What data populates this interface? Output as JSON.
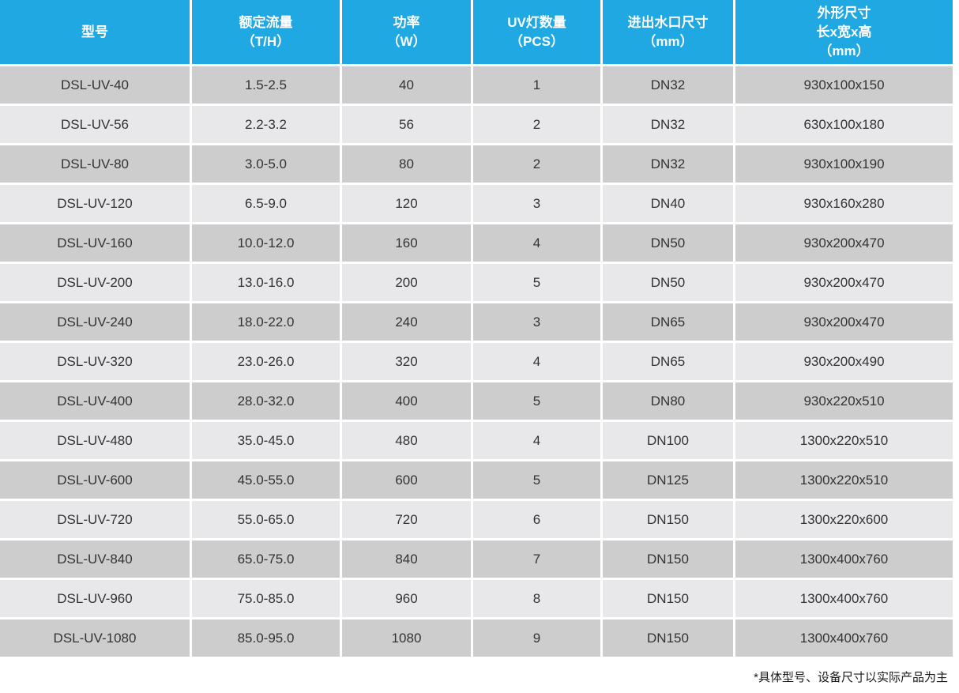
{
  "table": {
    "columns": [
      {
        "key": "model",
        "label": "型号"
      },
      {
        "key": "flow",
        "label": "额定流量\n（T/H）"
      },
      {
        "key": "power",
        "label": "功率\n（W）"
      },
      {
        "key": "lamps",
        "label": "UV灯数量\n（PCS）"
      },
      {
        "key": "port",
        "label": "进出水口尺寸\n（mm）"
      },
      {
        "key": "dims",
        "label": "外形尺寸\n长x宽x高\n（mm）"
      }
    ],
    "rows": [
      [
        "DSL-UV-40",
        "1.5-2.5",
        "40",
        "1",
        "DN32",
        "930x100x150"
      ],
      [
        "DSL-UV-56",
        "2.2-3.2",
        "56",
        "2",
        "DN32",
        "630x100x180"
      ],
      [
        "DSL-UV-80",
        "3.0-5.0",
        "80",
        "2",
        "DN32",
        "930x100x190"
      ],
      [
        "DSL-UV-120",
        "6.5-9.0",
        "120",
        "3",
        "DN40",
        "930x160x280"
      ],
      [
        "DSL-UV-160",
        "10.0-12.0",
        "160",
        "4",
        "DN50",
        "930x200x470"
      ],
      [
        "DSL-UV-200",
        "13.0-16.0",
        "200",
        "5",
        "DN50",
        "930x200x470"
      ],
      [
        "DSL-UV-240",
        "18.0-22.0",
        "240",
        "3",
        "DN65",
        "930x200x470"
      ],
      [
        "DSL-UV-320",
        "23.0-26.0",
        "320",
        "4",
        "DN65",
        "930x200x490"
      ],
      [
        "DSL-UV-400",
        "28.0-32.0",
        "400",
        "5",
        "DN80",
        "930x220x510"
      ],
      [
        "DSL-UV-480",
        "35.0-45.0",
        "480",
        "4",
        "DN100",
        "1300x220x510"
      ],
      [
        "DSL-UV-600",
        "45.0-55.0",
        "600",
        "5",
        "DN125",
        "1300x220x510"
      ],
      [
        "DSL-UV-720",
        "55.0-65.0",
        "720",
        "6",
        "DN150",
        "1300x220x600"
      ],
      [
        "DSL-UV-840",
        "65.0-75.0",
        "840",
        "7",
        "DN150",
        "1300x400x760"
      ],
      [
        "DSL-UV-960",
        "75.0-85.0",
        "960",
        "8",
        "DN150",
        "1300x400x760"
      ],
      [
        "DSL-UV-1080",
        "85.0-95.0",
        "1080",
        "9",
        "DN150",
        "1300x400x760"
      ]
    ],
    "footnote": "*具体型号、设备尺寸以实际产品为主"
  },
  "colors": {
    "header_bg": "#1fa8e1",
    "row_dark": "#cecdcd",
    "row_light": "#e8e7e9",
    "header_text": "#ffffff",
    "cell_text": "#333333"
  }
}
